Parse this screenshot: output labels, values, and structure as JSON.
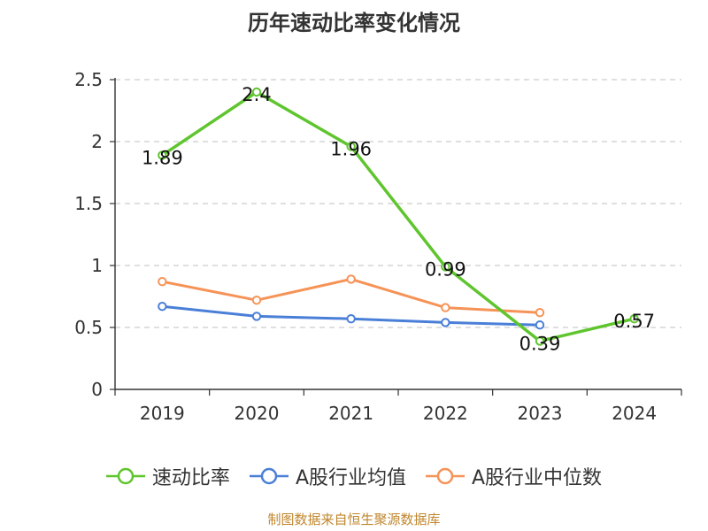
{
  "chart_data": {
    "type": "line",
    "title": "历年速动比率变化情况",
    "categories": [
      "2019",
      "2020",
      "2021",
      "2022",
      "2023",
      "2024"
    ],
    "ylim": [
      0,
      2.5
    ],
    "yticks": [
      "0",
      "0.5",
      "1",
      "1.5",
      "2",
      "2.5"
    ],
    "grid": true,
    "legend_position": "bottom",
    "series": [
      {
        "name": "速动比率",
        "color": "#5fc52e",
        "show_labels": true,
        "values": [
          1.89,
          2.4,
          1.96,
          0.99,
          0.39,
          0.57
        ],
        "labels": [
          "1.89",
          "2.4",
          "1.96",
          "0.99",
          "0.39",
          "0.57"
        ]
      },
      {
        "name": "A股行业均值",
        "color": "#4a7fd8",
        "show_labels": false,
        "values": [
          0.67,
          0.59,
          0.57,
          0.54,
          0.52,
          null
        ]
      },
      {
        "name": "A股行业中位数",
        "color": "#f69357",
        "show_labels": false,
        "values": [
          0.87,
          0.72,
          0.89,
          0.66,
          0.62,
          null
        ]
      }
    ]
  },
  "source": "制图数据来自恒生聚源数据库"
}
